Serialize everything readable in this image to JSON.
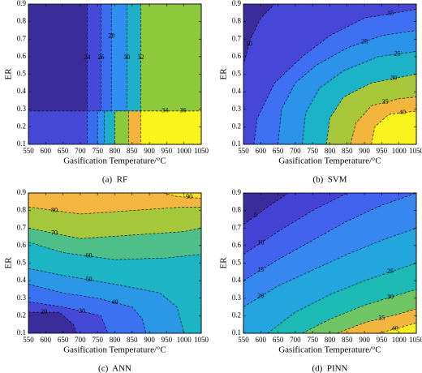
{
  "chart_data": [
    {
      "type": "contour",
      "caption": "(a)  RF",
      "xlabel": "Gasification Temperature/°C",
      "ylabel": "ER",
      "xlim": [
        550,
        1050
      ],
      "ylim": [
        0.1,
        0.9
      ],
      "xticks": [
        550,
        600,
        650,
        700,
        750,
        800,
        850,
        900,
        950,
        1000,
        1050
      ],
      "yticks": [
        0.1,
        0.2,
        0.3,
        0.4,
        0.5,
        0.6,
        0.7,
        0.8,
        0.9
      ],
      "base_color": "#3b2c9c",
      "contours": [
        {
          "level": 24,
          "color": "#4649d8",
          "x": [
            720,
            720,
            550,
            550,
            1050,
            1050
          ],
          "y": [
            0.9,
            0.29,
            0.29,
            0.1,
            0.1,
            0.9
          ]
        },
        {
          "level": 26,
          "color": "#3b6df0",
          "x": [
            760,
            760,
            720,
            720,
            1050,
            1050
          ],
          "y": [
            0.9,
            0.29,
            0.29,
            0.1,
            0.1,
            0.9
          ]
        },
        {
          "level": 28,
          "color": "#2f8ef0",
          "x": [
            790,
            790,
            750,
            750,
            1050,
            1050
          ],
          "y": [
            0.9,
            0.29,
            0.29,
            0.1,
            0.1,
            0.9
          ]
        },
        {
          "level": 30,
          "color": "#1fb0c9",
          "x": [
            835,
            835,
            770,
            770,
            1050,
            1050
          ],
          "y": [
            0.9,
            0.29,
            0.29,
            0.1,
            0.1,
            0.9
          ]
        },
        {
          "level": 32,
          "color": "#8ec93c",
          "x": [
            875,
            875,
            800,
            800,
            1050,
            1050
          ],
          "y": [
            0.9,
            0.29,
            0.29,
            0.1,
            0.1,
            0.9
          ]
        },
        {
          "level": 34,
          "color": "#f3b33d",
          "x": [
            840,
            840,
            1050,
            1050
          ],
          "y": [
            0.29,
            0.1,
            0.1,
            0.29
          ]
        },
        {
          "level": 36,
          "color": "#f9f41b",
          "x": [
            875,
            875,
            1050,
            1050
          ],
          "y": [
            0.29,
            0.1,
            0.1,
            0.29
          ]
        }
      ]
    },
    {
      "type": "contour",
      "caption": "(b)  SVM",
      "xlabel": "Gasification Temperature/°C",
      "ylabel": "ER",
      "xlim": [
        550,
        1050
      ],
      "ylim": [
        0.1,
        0.9
      ],
      "xticks": [
        550,
        600,
        650,
        700,
        750,
        800,
        850,
        900,
        950,
        1000,
        1050
      ],
      "yticks": [
        0.1,
        0.2,
        0.3,
        0.4,
        0.5,
        0.6,
        0.7,
        0.8,
        0.9
      ],
      "base_color": "#3b2c9c",
      "contours": [
        {
          "level": 10,
          "color": "#4647d9",
          "x": [
            550,
            570,
            600,
            640,
            1050,
            1050,
            550
          ],
          "y": [
            0.55,
            0.7,
            0.82,
            0.9,
            0.9,
            0.1,
            0.1
          ]
        },
        {
          "level": 15,
          "color": "#3f6ff2",
          "x": [
            580,
            590,
            640,
            720,
            800,
            900,
            1050,
            1050
          ],
          "y": [
            0.1,
            0.25,
            0.45,
            0.6,
            0.72,
            0.82,
            0.87,
            0.1
          ]
        },
        {
          "level": 20,
          "color": "#2c93ea",
          "x": [
            650,
            660,
            700,
            760,
            850,
            950,
            1050,
            1050
          ],
          "y": [
            0.1,
            0.3,
            0.45,
            0.55,
            0.65,
            0.72,
            0.75,
            0.1
          ]
        },
        {
          "level": 25,
          "color": "#1cb2c8",
          "x": [
            720,
            730,
            770,
            840,
            940,
            1050,
            1050
          ],
          "y": [
            0.1,
            0.28,
            0.42,
            0.52,
            0.6,
            0.63,
            0.1
          ]
        },
        {
          "level": 30,
          "color": "#a7c63a",
          "x": [
            790,
            800,
            840,
            920,
            1050,
            1050
          ],
          "y": [
            0.1,
            0.25,
            0.37,
            0.45,
            0.5,
            0.1
          ]
        },
        {
          "level": 35,
          "color": "#f4b53d",
          "x": [
            860,
            875,
            920,
            1000,
            1050,
            1050
          ],
          "y": [
            0.1,
            0.22,
            0.32,
            0.36,
            0.37,
            0.1
          ]
        },
        {
          "level": 40,
          "color": "#f8f31c",
          "x": [
            920,
            930,
            970,
            1050,
            1050
          ],
          "y": [
            0.1,
            0.2,
            0.27,
            0.29,
            0.1
          ]
        }
      ]
    },
    {
      "type": "contour",
      "caption": "(c)  ANN",
      "xlabel": "Gasification Temperature/°C",
      "ylabel": "ER",
      "xlim": [
        550,
        1050
      ],
      "ylim": [
        0.1,
        0.9
      ],
      "xticks": [
        550,
        600,
        650,
        700,
        750,
        800,
        850,
        900,
        950,
        1000,
        1050
      ],
      "yticks": [
        0.1,
        0.2,
        0.3,
        0.4,
        0.5,
        0.6,
        0.7,
        0.8,
        0.9
      ],
      "base_color": "#3b2c9c",
      "contours": [
        {
          "level": 20,
          "color": "#4649d8",
          "x": [
            550,
            640,
            680,
            690,
            1050,
            1050,
            550
          ],
          "y": [
            0.22,
            0.22,
            0.15,
            0.1,
            0.1,
            0.9,
            0.9
          ]
        },
        {
          "level": 30,
          "color": "#3b72f2",
          "x": [
            550,
            650,
            760,
            780,
            1050,
            1050,
            550
          ],
          "y": [
            0.28,
            0.25,
            0.2,
            0.1,
            0.1,
            0.9,
            0.9
          ]
        },
        {
          "level": 40,
          "color": "#2a98e6",
          "x": [
            550,
            650,
            750,
            850,
            880,
            890,
            1050,
            1050,
            550
          ],
          "y": [
            0.38,
            0.33,
            0.3,
            0.25,
            0.18,
            0.1,
            0.1,
            0.9,
            0.9
          ]
        },
        {
          "level": 50,
          "color": "#1db4c6",
          "x": [
            550,
            650,
            800,
            930,
            980,
            1000,
            1050,
            1050,
            550
          ],
          "y": [
            0.47,
            0.43,
            0.38,
            0.33,
            0.25,
            0.1,
            0.1,
            0.9,
            0.9
          ]
        },
        {
          "level": 60,
          "color": "#4ebf88",
          "x": [
            550,
            650,
            800,
            950,
            1050,
            1050,
            550
          ],
          "y": [
            0.62,
            0.56,
            0.52,
            0.53,
            0.55,
            0.9,
            0.9
          ]
        },
        {
          "level": 70,
          "color": "#a5c73b",
          "x": [
            550,
            700,
            850,
            1000,
            1050,
            1050,
            550
          ],
          "y": [
            0.7,
            0.64,
            0.66,
            0.68,
            0.7,
            0.9,
            0.9
          ]
        },
        {
          "level": 80,
          "color": "#f4b63e",
          "x": [
            550,
            700,
            850,
            1000,
            1050,
            1050,
            550
          ],
          "y": [
            0.82,
            0.78,
            0.8,
            0.82,
            0.82,
            0.9,
            0.9
          ]
        },
        {
          "level": 90,
          "color": "#f6e026",
          "x": [
            940,
            980,
            1050,
            1050
          ],
          "y": [
            0.9,
            0.88,
            0.87,
            0.9
          ]
        }
      ]
    },
    {
      "type": "contour",
      "caption": "(d)  PINN",
      "xlabel": "Gasification Temperature/°C",
      "ylabel": "ER",
      "xlim": [
        550,
        1050
      ],
      "ylim": [
        0.1,
        0.9
      ],
      "xticks": [
        550,
        600,
        650,
        700,
        750,
        800,
        850,
        900,
        950,
        1000,
        1050
      ],
      "yticks": [
        0.1,
        0.2,
        0.3,
        0.4,
        0.5,
        0.6,
        0.7,
        0.8,
        0.9
      ],
      "base_color": "#3b2c9c",
      "contours": [
        {
          "level": 5,
          "color": "#4543d6",
          "x": [
            550,
            620,
            680,
            1050,
            1050,
            550
          ],
          "y": [
            0.72,
            0.82,
            0.9,
            0.9,
            0.1,
            0.1
          ]
        },
        {
          "level": 10,
          "color": "#4263ee",
          "x": [
            550,
            650,
            750,
            850,
            1050,
            1050,
            550
          ],
          "y": [
            0.55,
            0.68,
            0.8,
            0.9,
            0.9,
            0.1,
            0.1
          ]
        },
        {
          "level": 15,
          "color": "#3688f0",
          "x": [
            550,
            650,
            750,
            850,
            950,
            1050,
            1050,
            550
          ],
          "y": [
            0.4,
            0.52,
            0.63,
            0.74,
            0.83,
            0.9,
            0.1,
            0.1
          ]
        },
        {
          "level": 20,
          "color": "#23a6de",
          "x": [
            550,
            650,
            750,
            850,
            950,
            1050,
            1050,
            550
          ],
          "y": [
            0.25,
            0.37,
            0.46,
            0.55,
            0.63,
            0.7,
            0.1,
            0.1
          ]
        },
        {
          "level": 25,
          "color": "#1db9b4",
          "x": [
            620,
            700,
            800,
            900,
            1050,
            1050
          ],
          "y": [
            0.1,
            0.22,
            0.32,
            0.4,
            0.5,
            0.1
          ]
        },
        {
          "level": 30,
          "color": "#6fc463",
          "x": [
            720,
            800,
            900,
            1050,
            1050
          ],
          "y": [
            0.1,
            0.18,
            0.26,
            0.35,
            0.1
          ]
        },
        {
          "level": 35,
          "color": "#f2b63f",
          "x": [
            820,
            900,
            1000,
            1050,
            1050
          ],
          "y": [
            0.1,
            0.16,
            0.21,
            0.24,
            0.1
          ]
        },
        {
          "level": 40,
          "color": "#f8ef22",
          "x": [
            940,
            1000,
            1050,
            1050
          ],
          "y": [
            0.1,
            0.13,
            0.16,
            0.1
          ]
        }
      ]
    }
  ]
}
